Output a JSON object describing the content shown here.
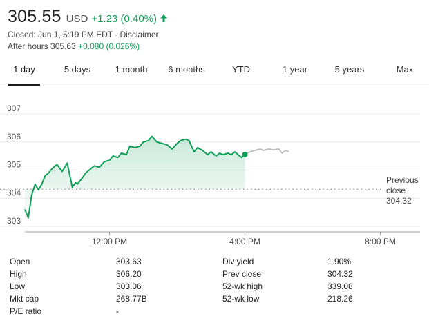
{
  "quote": {
    "price": "305.55",
    "currency": "USD",
    "change": "+1.23 (0.40%)",
    "closed_text": "Closed: Jun 1, 5:19 PM EDT · Disclaimer",
    "after_hours_label": "After hours 305.63",
    "after_hours_change": "+0.080 (0.026%)"
  },
  "tabs": [
    {
      "label": "1 day",
      "active": true
    },
    {
      "label": "5 days"
    },
    {
      "label": "1 month"
    },
    {
      "label": "6 months"
    },
    {
      "label": "YTD"
    },
    {
      "label": "1 year"
    },
    {
      "label": "5 years"
    },
    {
      "label": "Max"
    }
  ],
  "chart_data": {
    "type": "line",
    "y_ticks": [
      "307",
      "306",
      "305",
      "304",
      "303"
    ],
    "ylim": [
      303,
      307
    ],
    "x_ticks": [
      "12:00 PM",
      "4:00 PM",
      "8:00 PM"
    ],
    "previous_close": {
      "label_line1": "Previous",
      "label_line2": "close",
      "value": "304.32"
    },
    "series": [
      {
        "session": "regular",
        "x_hours": [
          9.5,
          9.6,
          9.7,
          9.8,
          9.9,
          10.0,
          10.1,
          10.2,
          10.3,
          10.45,
          10.6,
          10.75,
          10.9,
          11.0,
          11.05,
          11.15,
          11.3,
          11.4,
          11.55,
          11.7,
          11.85,
          12.0,
          12.1,
          12.25,
          12.35,
          12.5,
          12.6,
          12.75,
          12.9,
          13.0,
          13.15,
          13.25,
          13.4,
          13.55,
          13.7,
          13.85,
          14.0,
          14.1,
          14.25,
          14.35,
          14.5,
          14.6,
          14.75,
          14.9,
          15.0,
          15.15,
          15.25,
          15.35,
          15.5,
          15.6,
          15.7,
          15.8,
          15.9,
          16.0
        ],
        "values": [
          303.6,
          303.3,
          304.1,
          304.5,
          304.3,
          304.5,
          304.8,
          304.9,
          305.05,
          305.2,
          304.95,
          305.25,
          304.4,
          304.55,
          304.5,
          304.65,
          304.9,
          305.0,
          305.15,
          305.1,
          305.3,
          305.35,
          305.5,
          305.45,
          305.6,
          305.55,
          305.85,
          305.8,
          305.85,
          306.0,
          306.05,
          306.2,
          306.0,
          305.95,
          305.9,
          305.75,
          305.95,
          306.05,
          306.1,
          306.05,
          305.65,
          305.8,
          305.7,
          305.55,
          305.65,
          305.5,
          305.6,
          305.55,
          305.6,
          305.55,
          305.65,
          305.55,
          305.45,
          305.55
        ]
      },
      {
        "session": "after-hours",
        "x_hours": [
          16.0,
          16.15,
          16.3,
          16.45,
          16.55,
          16.7,
          16.85,
          17.0,
          17.1,
          17.2,
          17.3
        ],
        "values": [
          305.55,
          305.65,
          305.7,
          305.75,
          305.7,
          305.75,
          305.72,
          305.75,
          305.6,
          305.7,
          305.65
        ]
      }
    ]
  },
  "stats": {
    "col1": [
      {
        "label": "Open",
        "value": "303.63"
      },
      {
        "label": "High",
        "value": "306.20"
      },
      {
        "label": "Low",
        "value": "303.06"
      },
      {
        "label": "Mkt cap",
        "value": "268.77B"
      },
      {
        "label": "P/E ratio",
        "value": "-"
      }
    ],
    "col2": [
      {
        "label": "Div yield",
        "value": "1.90%"
      },
      {
        "label": "Prev close",
        "value": "304.32"
      },
      {
        "label": "52-wk high",
        "value": "339.08"
      },
      {
        "label": "52-wk low",
        "value": "218.26"
      }
    ]
  },
  "colors": {
    "positive": "#0f9d58",
    "after_hours_line": "#c0c0c0"
  }
}
